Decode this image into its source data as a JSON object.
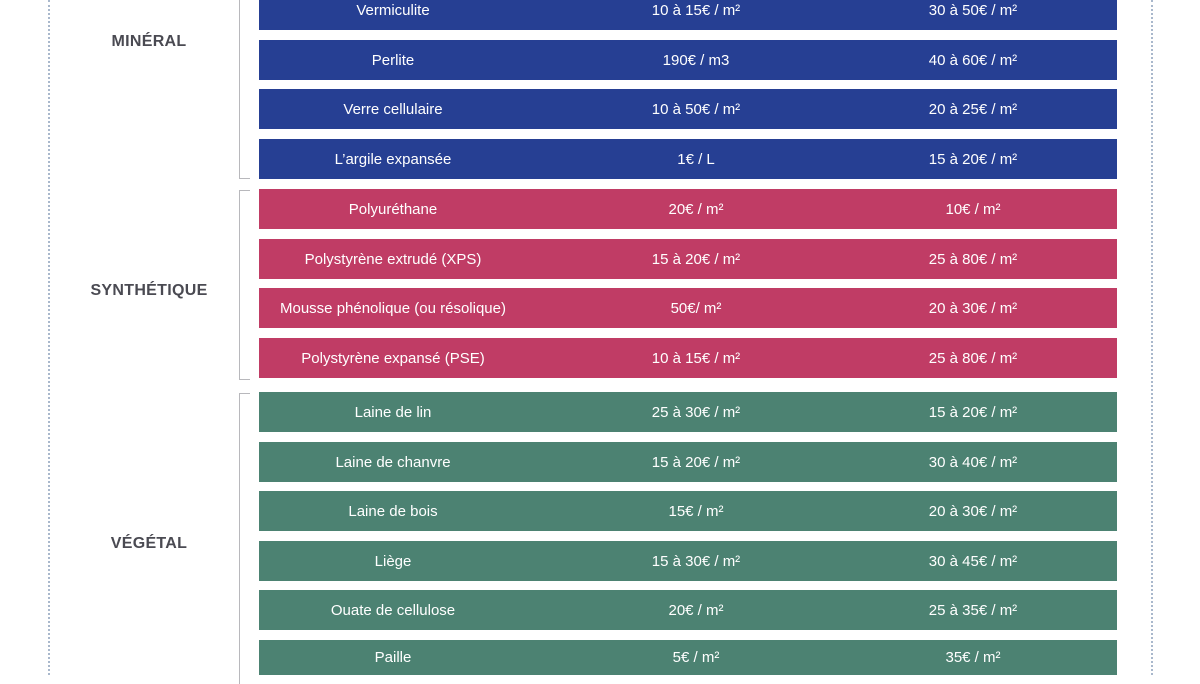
{
  "colors": {
    "mineral": "#263f93",
    "synthetique": "#c03c65",
    "vegetal": "#4c8272"
  },
  "groups": [
    {
      "key": "mineral",
      "label": "MINÉRAL",
      "rows": [
        {
          "material": "Vermiculite",
          "price1": "10 à 15€ / m²",
          "price2": "30 à 50€ / m²"
        },
        {
          "material": "Perlite",
          "price1": "190€ / m3",
          "price2": "40 à 60€ / m²"
        },
        {
          "material": "Verre cellulaire",
          "price1": "10 à 50€ / m²",
          "price2": "20 à 25€ / m²"
        },
        {
          "material": "L’argile expansée",
          "price1": "1€ / L",
          "price2": "15 à 20€ / m²"
        }
      ]
    },
    {
      "key": "synthetique",
      "label": "SYNTHÉTIQUE",
      "rows": [
        {
          "material": "Polyuréthane",
          "price1": "20€ / m²",
          "price2": "10€ / m²"
        },
        {
          "material": "Polystyrène extrudé (XPS)",
          "price1": "15 à 20€ / m²",
          "price2": "25 à 80€ / m²"
        },
        {
          "material": "Mousse phénolique (ou résolique)",
          "price1": "50€/ m²",
          "price2": "20 à 30€ / m²"
        },
        {
          "material": "Polystyrène expansé (PSE)",
          "price1": "10 à 15€ / m²",
          "price2": "25 à 80€ / m²"
        }
      ]
    },
    {
      "key": "vegetal",
      "label": "VÉGÉTAL",
      "rows": [
        {
          "material": "Laine de lin",
          "price1": "25 à 30€ / m²",
          "price2": "15 à 20€ / m²"
        },
        {
          "material": "Laine de chanvre",
          "price1": "15 à 20€ / m²",
          "price2": "30 à 40€ / m²"
        },
        {
          "material": "Laine de bois",
          "price1": "15€ / m²",
          "price2": "20 à 30€ / m²"
        },
        {
          "material": "Liège",
          "price1": "15 à 30€ / m²",
          "price2": "30 à 45€ / m²"
        },
        {
          "material": "Ouate de cellulose",
          "price1": "20€ / m²",
          "price2": "25 à 35€ / m²"
        },
        {
          "material": "Paille",
          "price1": "5€ / m²",
          "price2": "35€ / m²"
        }
      ]
    }
  ]
}
